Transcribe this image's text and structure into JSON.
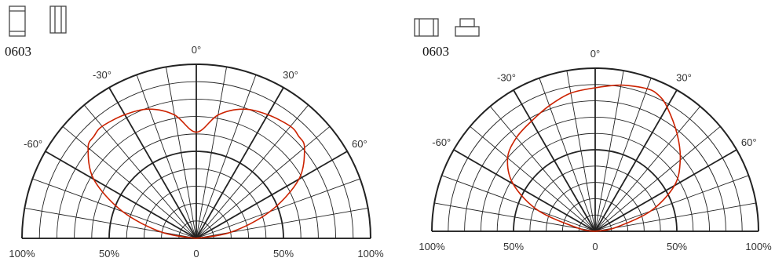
{
  "charts": [
    {
      "package_label": "0603",
      "icons": [
        "component-top-view-icon",
        "component-side-view-icon"
      ],
      "angle_labels": [
        "-60°",
        "-30°",
        "0°",
        "30°",
        "60°"
      ],
      "radial_labels": [
        "100%",
        "50%",
        "0",
        "50%",
        "100%"
      ]
    },
    {
      "package_label": "0603",
      "icons": [
        "component-front-view-icon",
        "component-flat-side-icon"
      ],
      "angle_labels": [
        "-60°",
        "-30°",
        "0°",
        "30°",
        "60°"
      ],
      "radial_labels": [
        "100%",
        "50%",
        "0",
        "50%",
        "100%"
      ]
    }
  ],
  "chart_data": [
    {
      "type": "polar-radiation-pattern",
      "angle_range_deg": [
        -90,
        90
      ],
      "radius_range_percent": [
        0,
        100
      ],
      "grid": true,
      "line_color": "#cc2200",
      "series": [
        {
          "angles_deg": [
            -90,
            -80,
            -70,
            -60,
            -50,
            -45,
            -40,
            -30,
            -20,
            -10,
            0,
            10,
            20,
            30,
            40,
            45,
            50,
            60,
            70,
            80,
            90
          ],
          "values_percent": [
            0,
            20,
            45,
            68,
            81,
            83,
            84,
            82,
            79,
            72,
            61,
            72,
            79,
            82,
            84,
            83,
            81,
            68,
            45,
            20,
            0
          ]
        }
      ]
    },
    {
      "type": "polar-radiation-pattern",
      "angle_range_deg": [
        -90,
        90
      ],
      "radius_range_percent": [
        0,
        100
      ],
      "grid": true,
      "line_color": "#cc2200",
      "series": [
        {
          "angles_deg": [
            -90,
            -80,
            -70,
            -60,
            -50,
            -40,
            -30,
            -20,
            -10,
            0,
            10,
            20,
            25,
            30,
            40,
            50,
            60,
            70,
            80,
            90
          ],
          "values_percent": [
            0,
            10,
            37,
            58,
            70,
            75,
            78,
            82,
            86,
            88,
            91,
            93,
            92,
            88,
            78,
            68,
            56,
            36,
            12,
            0
          ]
        }
      ]
    }
  ]
}
